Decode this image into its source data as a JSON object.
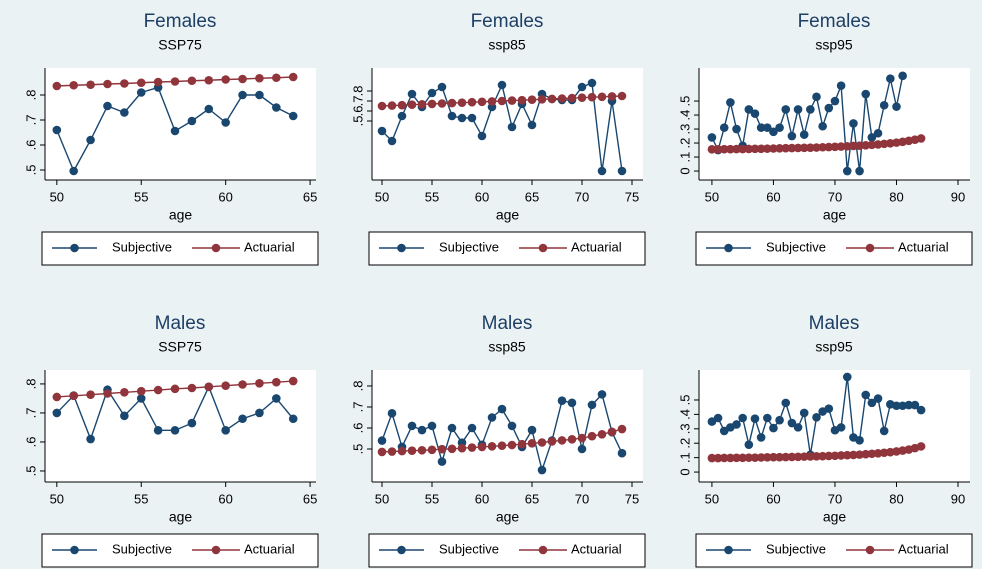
{
  "chart_data": [
    {
      "type": "line",
      "title": "Females",
      "subtitle": "SSP75",
      "xlabel": "age",
      "x": [
        50,
        51,
        52,
        53,
        54,
        55,
        56,
        57,
        58,
        59,
        60,
        61,
        62,
        63,
        64
      ],
      "series": [
        {
          "name": "Subjective",
          "color": "#1a476f",
          "values": [
            0.66,
            0.496,
            0.62,
            0.756,
            0.73,
            0.81,
            0.83,
            0.656,
            0.696,
            0.744,
            0.69,
            0.8,
            0.8,
            0.75,
            0.716
          ]
        },
        {
          "name": "Actuarial",
          "color": "#90353b",
          "values": [
            0.836,
            0.839,
            0.841,
            0.844,
            0.846,
            0.849,
            0.852,
            0.854,
            0.857,
            0.859,
            0.862,
            0.864,
            0.867,
            0.869,
            0.872
          ]
        }
      ],
      "xlim": [
        49.3,
        65.35
      ],
      "ylim": [
        0.46,
        0.908
      ],
      "xticks": [
        50,
        55,
        60,
        65
      ],
      "yticks": [
        {
          "value": 0.5,
          "label": ".5"
        },
        {
          "value": 0.6,
          "label": ".6"
        },
        {
          "value": 0.7,
          "label": ".7"
        },
        {
          "value": 0.8,
          "label": ".8"
        }
      ]
    },
    {
      "type": "line",
      "title": "Females",
      "subtitle": "ssp85",
      "xlabel": "age",
      "x": [
        50,
        51,
        52,
        53,
        54,
        55,
        56,
        57,
        58,
        59,
        60,
        61,
        62,
        63,
        64,
        65,
        66,
        67,
        68,
        69,
        70,
        71,
        72,
        73,
        74
      ],
      "series": [
        {
          "name": "Subjective",
          "color": "#1a476f",
          "values": [
            0.4,
            0.3,
            0.55,
            0.77,
            0.64,
            0.78,
            0.84,
            0.55,
            0.53,
            0.53,
            0.35,
            0.64,
            0.86,
            0.44,
            0.67,
            0.46,
            0.77,
            0.72,
            0.71,
            0.71,
            0.84,
            0.88,
            0,
            0.7,
            0
          ]
        },
        {
          "name": "Actuarial",
          "color": "#90353b",
          "values": [
            0.65,
            0.654,
            0.658,
            0.663,
            0.667,
            0.671,
            0.675,
            0.679,
            0.683,
            0.688,
            0.692,
            0.696,
            0.7,
            0.704,
            0.708,
            0.713,
            0.717,
            0.721,
            0.725,
            0.729,
            0.733,
            0.738,
            0.742,
            0.746,
            0.75
          ]
        }
      ],
      "xlim": [
        49,
        76.1
      ],
      "ylim": [
        -0.09,
        1.03
      ],
      "xticks": [
        50,
        55,
        60,
        65,
        70,
        75
      ],
      "yticks": [
        {
          "value": 0.5,
          "label": ".5"
        },
        {
          "value": 0.6,
          "label": ".6"
        },
        {
          "value": 0.7,
          "label": ".7"
        },
        {
          "value": 0.8,
          "label": ".8"
        }
      ]
    },
    {
      "type": "line",
      "title": "Females",
      "subtitle": "ssp95",
      "xlabel": "age",
      "x": [
        50,
        51,
        52,
        53,
        54,
        55,
        56,
        57,
        58,
        59,
        60,
        61,
        62,
        63,
        64,
        65,
        66,
        67,
        68,
        69,
        70,
        71,
        72,
        73,
        74,
        75,
        76,
        77,
        78,
        79,
        80,
        81,
        82,
        83,
        84
      ],
      "series": [
        {
          "name": "Subjective",
          "color": "#1a476f",
          "values": [
            0.24,
            0.15,
            0.31,
            0.49,
            0.3,
            0.18,
            0.44,
            0.41,
            0.31,
            0.31,
            0.28,
            0.31,
            0.44,
            0.25,
            0.44,
            0.26,
            0.44,
            0.53,
            0.32,
            0.45,
            0.5,
            0.61,
            0,
            0.34,
            0,
            0.55,
            0.24,
            0.27,
            0.47,
            0.66,
            0.46,
            0.68,
            null,
            null,
            null
          ]
        },
        {
          "name": "Actuarial",
          "color": "#90353b",
          "values": [
            0.155,
            0.155,
            0.156,
            0.156,
            0.157,
            0.157,
            0.158,
            0.159,
            0.159,
            0.16,
            0.161,
            0.162,
            0.163,
            0.164,
            0.165,
            0.166,
            0.167,
            0.168,
            0.17,
            0.171,
            0.173,
            0.175,
            0.177,
            0.179,
            0.181,
            0.184,
            0.187,
            0.19,
            0.194,
            0.198,
            0.203,
            0.209,
            0.216,
            0.224,
            0.233
          ]
        }
      ],
      "xlim": [
        47.9,
        91.95
      ],
      "ylim": [
        -0.064,
        0.736
      ],
      "xticks": [
        50,
        60,
        70,
        80,
        90
      ],
      "yticks": [
        0,
        {
          "value": 0.1,
          "label": ".1"
        },
        {
          "value": 0.2,
          "label": ".2"
        },
        {
          "value": 0.3,
          "label": ".3"
        },
        {
          "value": 0.4,
          "label": ".4"
        },
        {
          "value": 0.5,
          "label": ".5"
        }
      ]
    },
    {
      "type": "line",
      "title": "Males",
      "subtitle": "SSP75",
      "xlabel": "age",
      "x": [
        50,
        51,
        52,
        53,
        54,
        55,
        56,
        57,
        58,
        59,
        60,
        61,
        62,
        63,
        64
      ],
      "series": [
        {
          "name": "Subjective",
          "color": "#1a476f",
          "values": [
            0.7,
            0.76,
            0.61,
            0.78,
            0.69,
            0.75,
            0.64,
            0.64,
            0.665,
            0.79,
            0.64,
            0.68,
            0.7,
            0.75,
            0.68
          ]
        },
        {
          "name": "Actuarial",
          "color": "#90353b",
          "values": [
            0.755,
            0.759,
            0.763,
            0.767,
            0.771,
            0.775,
            0.779,
            0.783,
            0.786,
            0.79,
            0.794,
            0.798,
            0.802,
            0.806,
            0.81
          ]
        }
      ],
      "xlim": [
        49.3,
        65.35
      ],
      "ylim": [
        0.462,
        0.848
      ],
      "xticks": [
        50,
        55,
        60,
        65
      ],
      "yticks": [
        {
          "value": 0.5,
          "label": ".5"
        },
        {
          "value": 0.6,
          "label": ".6"
        },
        {
          "value": 0.7,
          "label": ".7"
        },
        {
          "value": 0.8,
          "label": ".8"
        }
      ]
    },
    {
      "type": "line",
      "title": "Males",
      "subtitle": "ssp85",
      "xlabel": "age",
      "x": [
        50,
        51,
        52,
        53,
        54,
        55,
        56,
        57,
        58,
        59,
        60,
        61,
        62,
        63,
        64,
        65,
        66,
        67,
        68,
        69,
        70,
        71,
        72,
        73,
        74
      ],
      "series": [
        {
          "name": "Subjective",
          "color": "#1a476f",
          "values": [
            0.54,
            0.67,
            0.51,
            0.61,
            0.59,
            0.61,
            0.44,
            0.6,
            0.53,
            0.6,
            0.52,
            0.65,
            0.69,
            0.61,
            0.51,
            0.59,
            0.4,
            0.54,
            0.73,
            0.72,
            0.5,
            0.71,
            0.76,
            0.58,
            0.48
          ]
        },
        {
          "name": "Actuarial",
          "color": "#90353b",
          "values": [
            0.486,
            0.488,
            0.49,
            0.492,
            0.494,
            0.496,
            0.499,
            0.501,
            0.504,
            0.507,
            0.51,
            0.513,
            0.516,
            0.519,
            0.523,
            0.527,
            0.531,
            0.536,
            0.541,
            0.546,
            0.552,
            0.561,
            0.57,
            0.582,
            0.595
          ]
        }
      ],
      "xlim": [
        49,
        76.1
      ],
      "ylim": [
        0.343,
        0.876
      ],
      "xticks": [
        50,
        55,
        60,
        65,
        70,
        75
      ],
      "yticks": [
        {
          "value": 0.5,
          "label": ".5"
        },
        {
          "value": 0.6,
          "label": ".6"
        },
        {
          "value": 0.7,
          "label": ".7"
        },
        {
          "value": 0.8,
          "label": ".8"
        }
      ]
    },
    {
      "type": "line",
      "title": "Males",
      "subtitle": "ssp95",
      "xlabel": "age",
      "x": [
        50,
        51,
        52,
        53,
        54,
        55,
        56,
        57,
        58,
        59,
        60,
        61,
        62,
        63,
        64,
        65,
        66,
        67,
        68,
        69,
        70,
        71,
        72,
        73,
        74,
        75,
        76,
        77,
        78,
        79,
        80,
        81,
        82,
        83,
        84
      ],
      "series": [
        {
          "name": "Subjective",
          "color": "#1a476f",
          "values": [
            0.35,
            0.375,
            0.285,
            0.31,
            0.33,
            0.375,
            0.19,
            0.37,
            0.24,
            0.375,
            0.305,
            0.36,
            0.48,
            0.34,
            0.31,
            0.41,
            0.12,
            0.38,
            0.42,
            0.44,
            0.29,
            0.31,
            0.66,
            0.24,
            0.22,
            0.535,
            0.48,
            0.51,
            0.285,
            0.47,
            0.46,
            0.46,
            0.465,
            0.465,
            0.43
          ]
        },
        {
          "name": "Actuarial",
          "color": "#90353b",
          "values": [
            0.097,
            0.097,
            0.098,
            0.098,
            0.099,
            0.099,
            0.1,
            0.1,
            0.101,
            0.102,
            0.103,
            0.103,
            0.104,
            0.105,
            0.106,
            0.107,
            0.108,
            0.109,
            0.11,
            0.112,
            0.113,
            0.115,
            0.117,
            0.119,
            0.121,
            0.124,
            0.127,
            0.13,
            0.134,
            0.138,
            0.143,
            0.149,
            0.156,
            0.166,
            0.178
          ]
        }
      ],
      "xlim": [
        47.9,
        91.95
      ],
      "ylim": [
        -0.069,
        0.708
      ],
      "xticks": [
        50,
        60,
        70,
        80,
        90
      ],
      "yticks": [
        0,
        {
          "value": 0.1,
          "label": ".1"
        },
        {
          "value": 0.2,
          "label": ".2"
        },
        {
          "value": 0.3,
          "label": ".3"
        },
        {
          "value": 0.4,
          "label": ".4"
        },
        {
          "value": 0.5,
          "label": ".5"
        }
      ]
    }
  ]
}
